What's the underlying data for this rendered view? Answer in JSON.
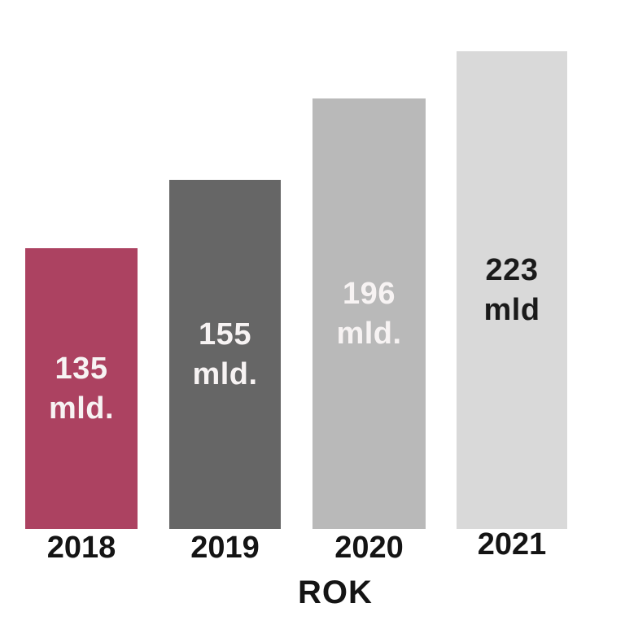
{
  "chart_data": {
    "type": "bar",
    "title": "",
    "xlabel": "ROK",
    "ylabel": "",
    "categories": [
      "2018",
      "2019",
      "2020",
      "2021"
    ],
    "values": [
      135,
      155,
      196,
      223
    ],
    "grid": false,
    "legend": false,
    "background_color": "#ffffff",
    "bars": [
      {
        "year": "2018",
        "value": 135,
        "value_text": "135",
        "unit_text": "mld.",
        "color": "#ac4261",
        "label_color": "#f7f3f3"
      },
      {
        "year": "2019",
        "value": 155,
        "value_text": "155",
        "unit_text": "mld.",
        "color": "#666666",
        "label_color": "#f7f3f3"
      },
      {
        "year": "2020",
        "value": 196,
        "value_text": "196",
        "unit_text": "mld.",
        "color": "#b9b9b9",
        "label_color": "#f7f3f3"
      },
      {
        "year": "2021",
        "value": 223,
        "value_text": "223",
        "unit_text": "mld",
        "color": "#d9d9d9",
        "label_color": "#1a1a1a"
      }
    ],
    "axis_text_color": "#141414"
  }
}
